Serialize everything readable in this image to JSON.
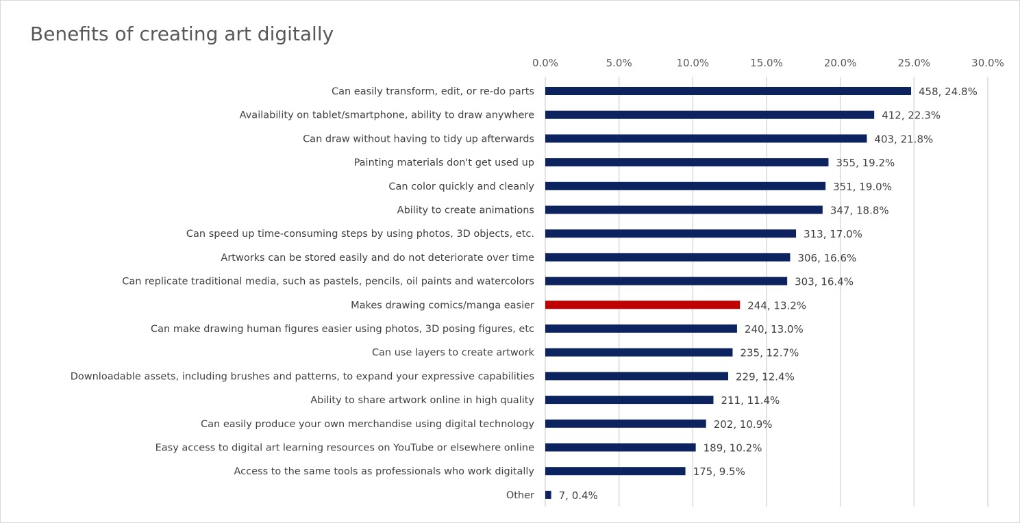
{
  "chart_data": {
    "type": "bar",
    "orientation": "horizontal",
    "title": "Benefits of creating art digitally",
    "xlim": [
      0,
      30
    ],
    "x_ticks": [
      "0.0%",
      "5.0%",
      "10.0%",
      "15.0%",
      "20.0%",
      "25.0%",
      "30.0%"
    ],
    "grid": "vertical",
    "categories": [
      "Can easily transform, edit, or re-do parts",
      "Availability on tablet/smartphone, ability to draw anywhere",
      "Can draw without having to tidy up afterwards",
      "Painting materials don't get used up",
      "Can color quickly and cleanly",
      "Ability to create animations",
      "Can speed up time-consuming steps by using photos, 3D objects, etc.",
      "Artworks can be stored easily and do not deteriorate over time",
      "Can replicate traditional media, such as pastels, pencils, oil paints and watercolors",
      "Makes drawing comics/manga easier",
      "Can make drawing human figures easier using photos, 3D posing figures, etc",
      "Can use layers to create artwork",
      "Downloadable assets, including brushes and patterns, to expand your expressive capabilities",
      "Ability to share artwork online in high quality",
      "Can easily produce your own merchandise using digital technology",
      "Easy access to digital art learning resources on YouTube or elsewhere online",
      "Access to the same tools as professionals who work digitally",
      "Other"
    ],
    "counts": [
      458,
      412,
      403,
      355,
      351,
      347,
      313,
      306,
      303,
      244,
      240,
      235,
      229,
      211,
      202,
      189,
      175,
      7
    ],
    "values": [
      24.8,
      22.3,
      21.8,
      19.2,
      19.0,
      18.8,
      17.0,
      16.6,
      16.4,
      13.2,
      13.0,
      12.7,
      12.4,
      11.4,
      10.9,
      10.2,
      9.5,
      0.4
    ],
    "data_labels": [
      "458, 24.8%",
      "412, 22.3%",
      "403, 21.8%",
      "355, 19.2%",
      "351, 19.0%",
      "347, 18.8%",
      "313, 17.0%",
      "306, 16.6%",
      "303, 16.4%",
      "244, 13.2%",
      "240, 13.0%",
      "235, 12.7%",
      "229, 12.4%",
      "211, 11.4%",
      "202, 10.9%",
      "189, 10.2%",
      "175, 9.5%",
      "7, 0.4%"
    ],
    "highlight_index": 9,
    "colors": {
      "bar": "#0d2360",
      "highlight": "#c00000",
      "grid": "#d9d9d9",
      "text": "#404040",
      "title": "#595959"
    }
  }
}
